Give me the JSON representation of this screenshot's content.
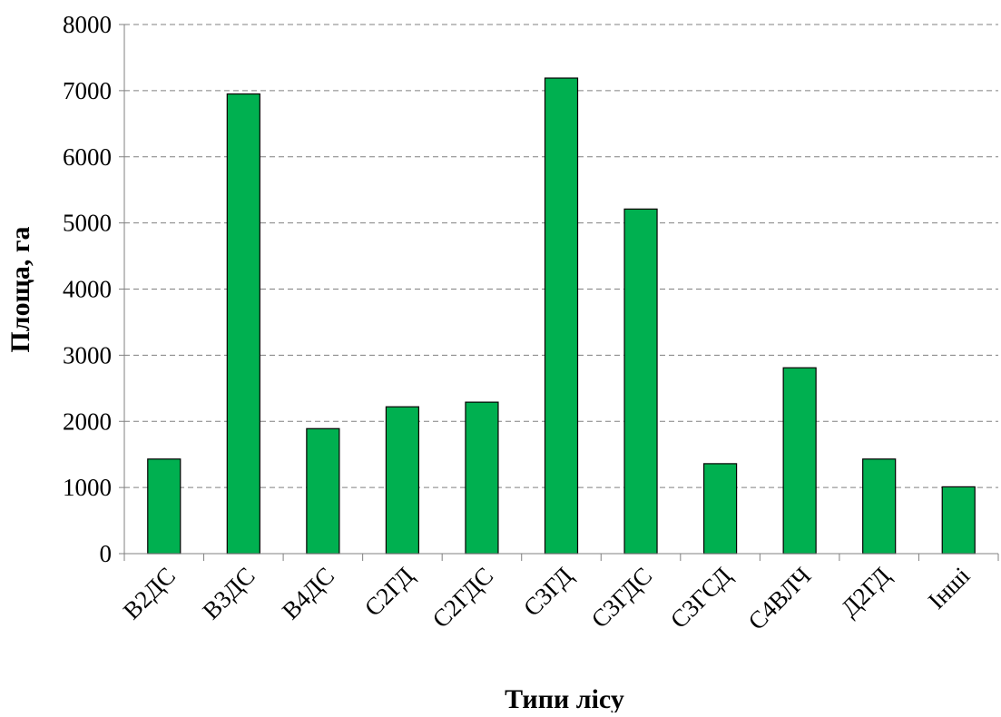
{
  "chart_data": {
    "type": "bar",
    "title": "",
    "xlabel": "Типи лісу",
    "ylabel": "Площа, га",
    "categories": [
      "В2ДС",
      "В3ДС",
      "В4ДС",
      "С2ГД",
      "С2ГДС",
      "С3ГД",
      "С3ГДС",
      "С3ГСД",
      "С4ВЛЧ",
      "Д2ГД",
      "Інші"
    ],
    "values": [
      1430,
      6950,
      1890,
      2220,
      2290,
      7190,
      5210,
      1360,
      2810,
      1430,
      1010
    ],
    "ylim": [
      0,
      8000
    ],
    "yticks": [
      0,
      1000,
      2000,
      3000,
      4000,
      5000,
      6000,
      7000,
      8000
    ],
    "grid": true,
    "grid_style": "dashed",
    "legend": "none",
    "bar_color": "#00B050",
    "bar_edge_color": "#000000",
    "grid_color": "#808080"
  }
}
